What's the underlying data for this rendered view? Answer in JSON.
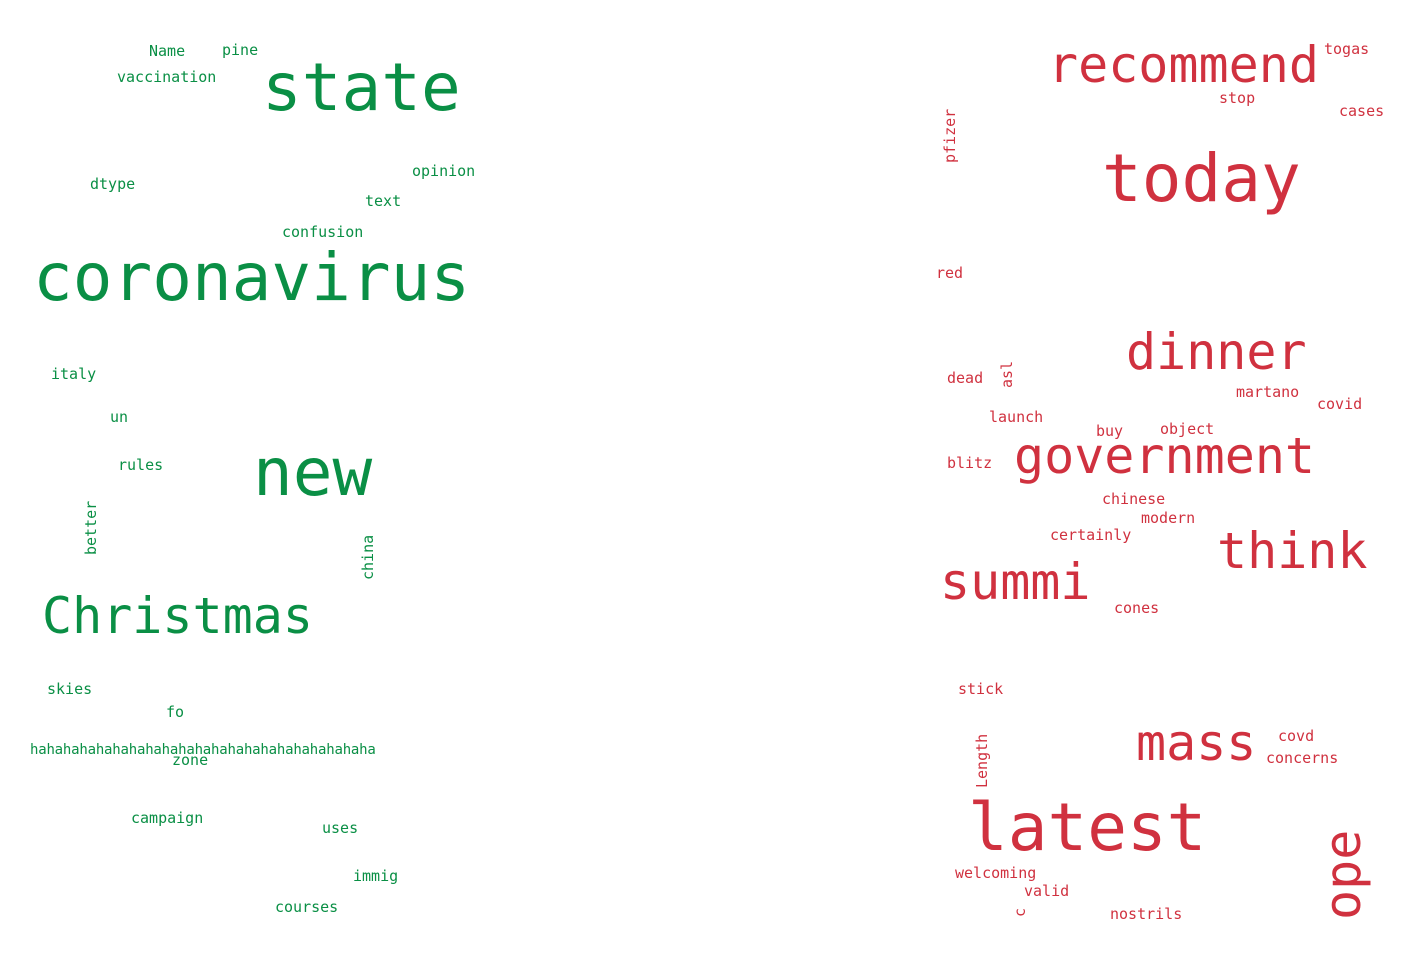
{
  "colors": {
    "green": "#0a8f45",
    "red": "#d0313f"
  },
  "left_cloud": {
    "words": [
      "Name",
      "pine",
      "vaccination",
      "state",
      "dtype",
      "opinion",
      "text",
      "confusion",
      "coronavirus",
      "italy",
      "un",
      "rules",
      "new",
      "better",
      "china",
      "Christmas",
      "skies",
      "fo",
      "hahahahahahahahahahahahahahahahahahahahaha",
      "zone",
      "campaign",
      "uses",
      "immig",
      "courses"
    ]
  },
  "right_cloud": {
    "words": [
      "recommend",
      "togas",
      "stop",
      "cases",
      "pfizer",
      "today",
      "red",
      "dinner",
      "dead",
      "asl",
      "martano",
      "covid",
      "launch",
      "buy",
      "object",
      "blitz",
      "government",
      "chinese",
      "modern",
      "certainly",
      "think",
      "summi",
      "cones",
      "stick",
      "mass",
      "covd",
      "concerns",
      "Length",
      "latest",
      "ope",
      "welcoming",
      "valid",
      "c",
      "nostrils"
    ]
  }
}
